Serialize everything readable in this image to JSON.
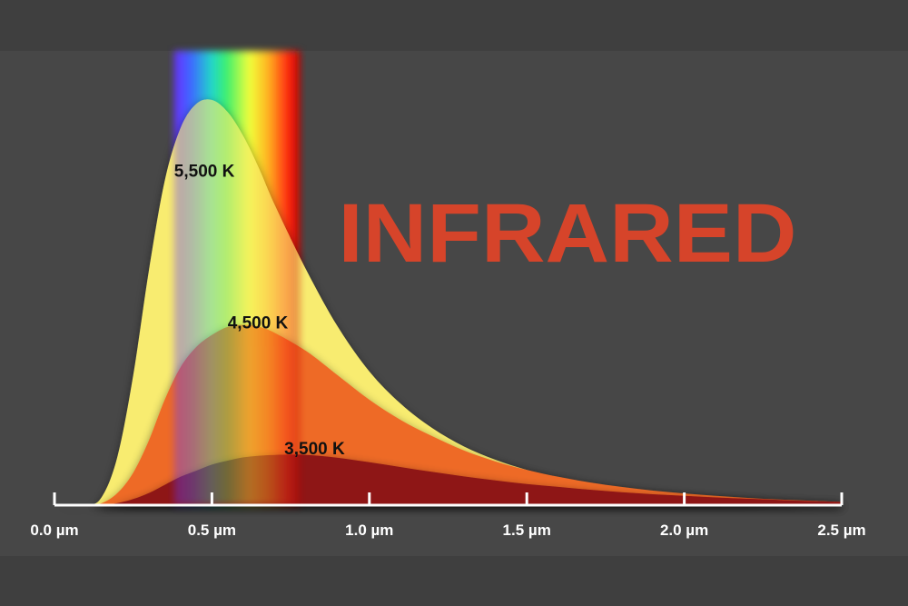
{
  "headline": "INFRARED",
  "colors": {
    "background": "#474747",
    "headline": "#d6442a",
    "curve_5500": "#f8ec70",
    "curve_4500": "#ee6a25",
    "curve_3500": "#8e1414",
    "axis": "#ffffff",
    "label_dark": "#111111"
  },
  "chart_data": {
    "type": "area",
    "title": "",
    "xlabel": "",
    "ylabel": "",
    "x_unit": "µm",
    "xlim": [
      0.0,
      2.5
    ],
    "x_ticks": [
      0.0,
      0.5,
      1.0,
      1.5,
      2.0,
      2.5
    ],
    "x_tick_labels": [
      "0.0 µm",
      "0.5 µm",
      "1.0 µm",
      "1.5 µm",
      "2.0 µm",
      "2.5 µm"
    ],
    "visible_band": [
      0.38,
      0.78
    ],
    "x": [
      0.0,
      0.1,
      0.15,
      0.2,
      0.25,
      0.3,
      0.35,
      0.4,
      0.45,
      0.5,
      0.55,
      0.6,
      0.65,
      0.7,
      0.8,
      0.9,
      1.0,
      1.1,
      1.2,
      1.3,
      1.4,
      1.5,
      1.6,
      1.7,
      1.8,
      1.9,
      2.0,
      2.1,
      2.2,
      2.3,
      2.4,
      2.5
    ],
    "series": [
      {
        "name": "5,500 K",
        "values": [
          0,
          0,
          0.02,
          0.12,
          0.32,
          0.58,
          0.8,
          0.93,
          0.99,
          1.0,
          0.97,
          0.91,
          0.83,
          0.74,
          0.58,
          0.44,
          0.33,
          0.25,
          0.19,
          0.145,
          0.112,
          0.087,
          0.068,
          0.054,
          0.043,
          0.034,
          0.027,
          0.021,
          0.016,
          0.012,
          0.009,
          0.007
        ]
      },
      {
        "name": "4,500 K",
        "values": [
          0,
          0,
          0.005,
          0.03,
          0.08,
          0.16,
          0.26,
          0.34,
          0.39,
          0.42,
          0.44,
          0.445,
          0.44,
          0.425,
          0.38,
          0.32,
          0.26,
          0.21,
          0.17,
          0.135,
          0.108,
          0.087,
          0.07,
          0.056,
          0.045,
          0.036,
          0.029,
          0.023,
          0.018,
          0.014,
          0.011,
          0.008
        ]
      },
      {
        "name": "3,500 K",
        "values": [
          0,
          0,
          0,
          0.005,
          0.015,
          0.03,
          0.05,
          0.07,
          0.085,
          0.1,
          0.11,
          0.118,
          0.122,
          0.124,
          0.124,
          0.117,
          0.106,
          0.094,
          0.082,
          0.071,
          0.061,
          0.052,
          0.045,
          0.038,
          0.032,
          0.027,
          0.023,
          0.019,
          0.016,
          0.013,
          0.01,
          0.008
        ]
      }
    ],
    "grid": false,
    "legend": "none"
  }
}
